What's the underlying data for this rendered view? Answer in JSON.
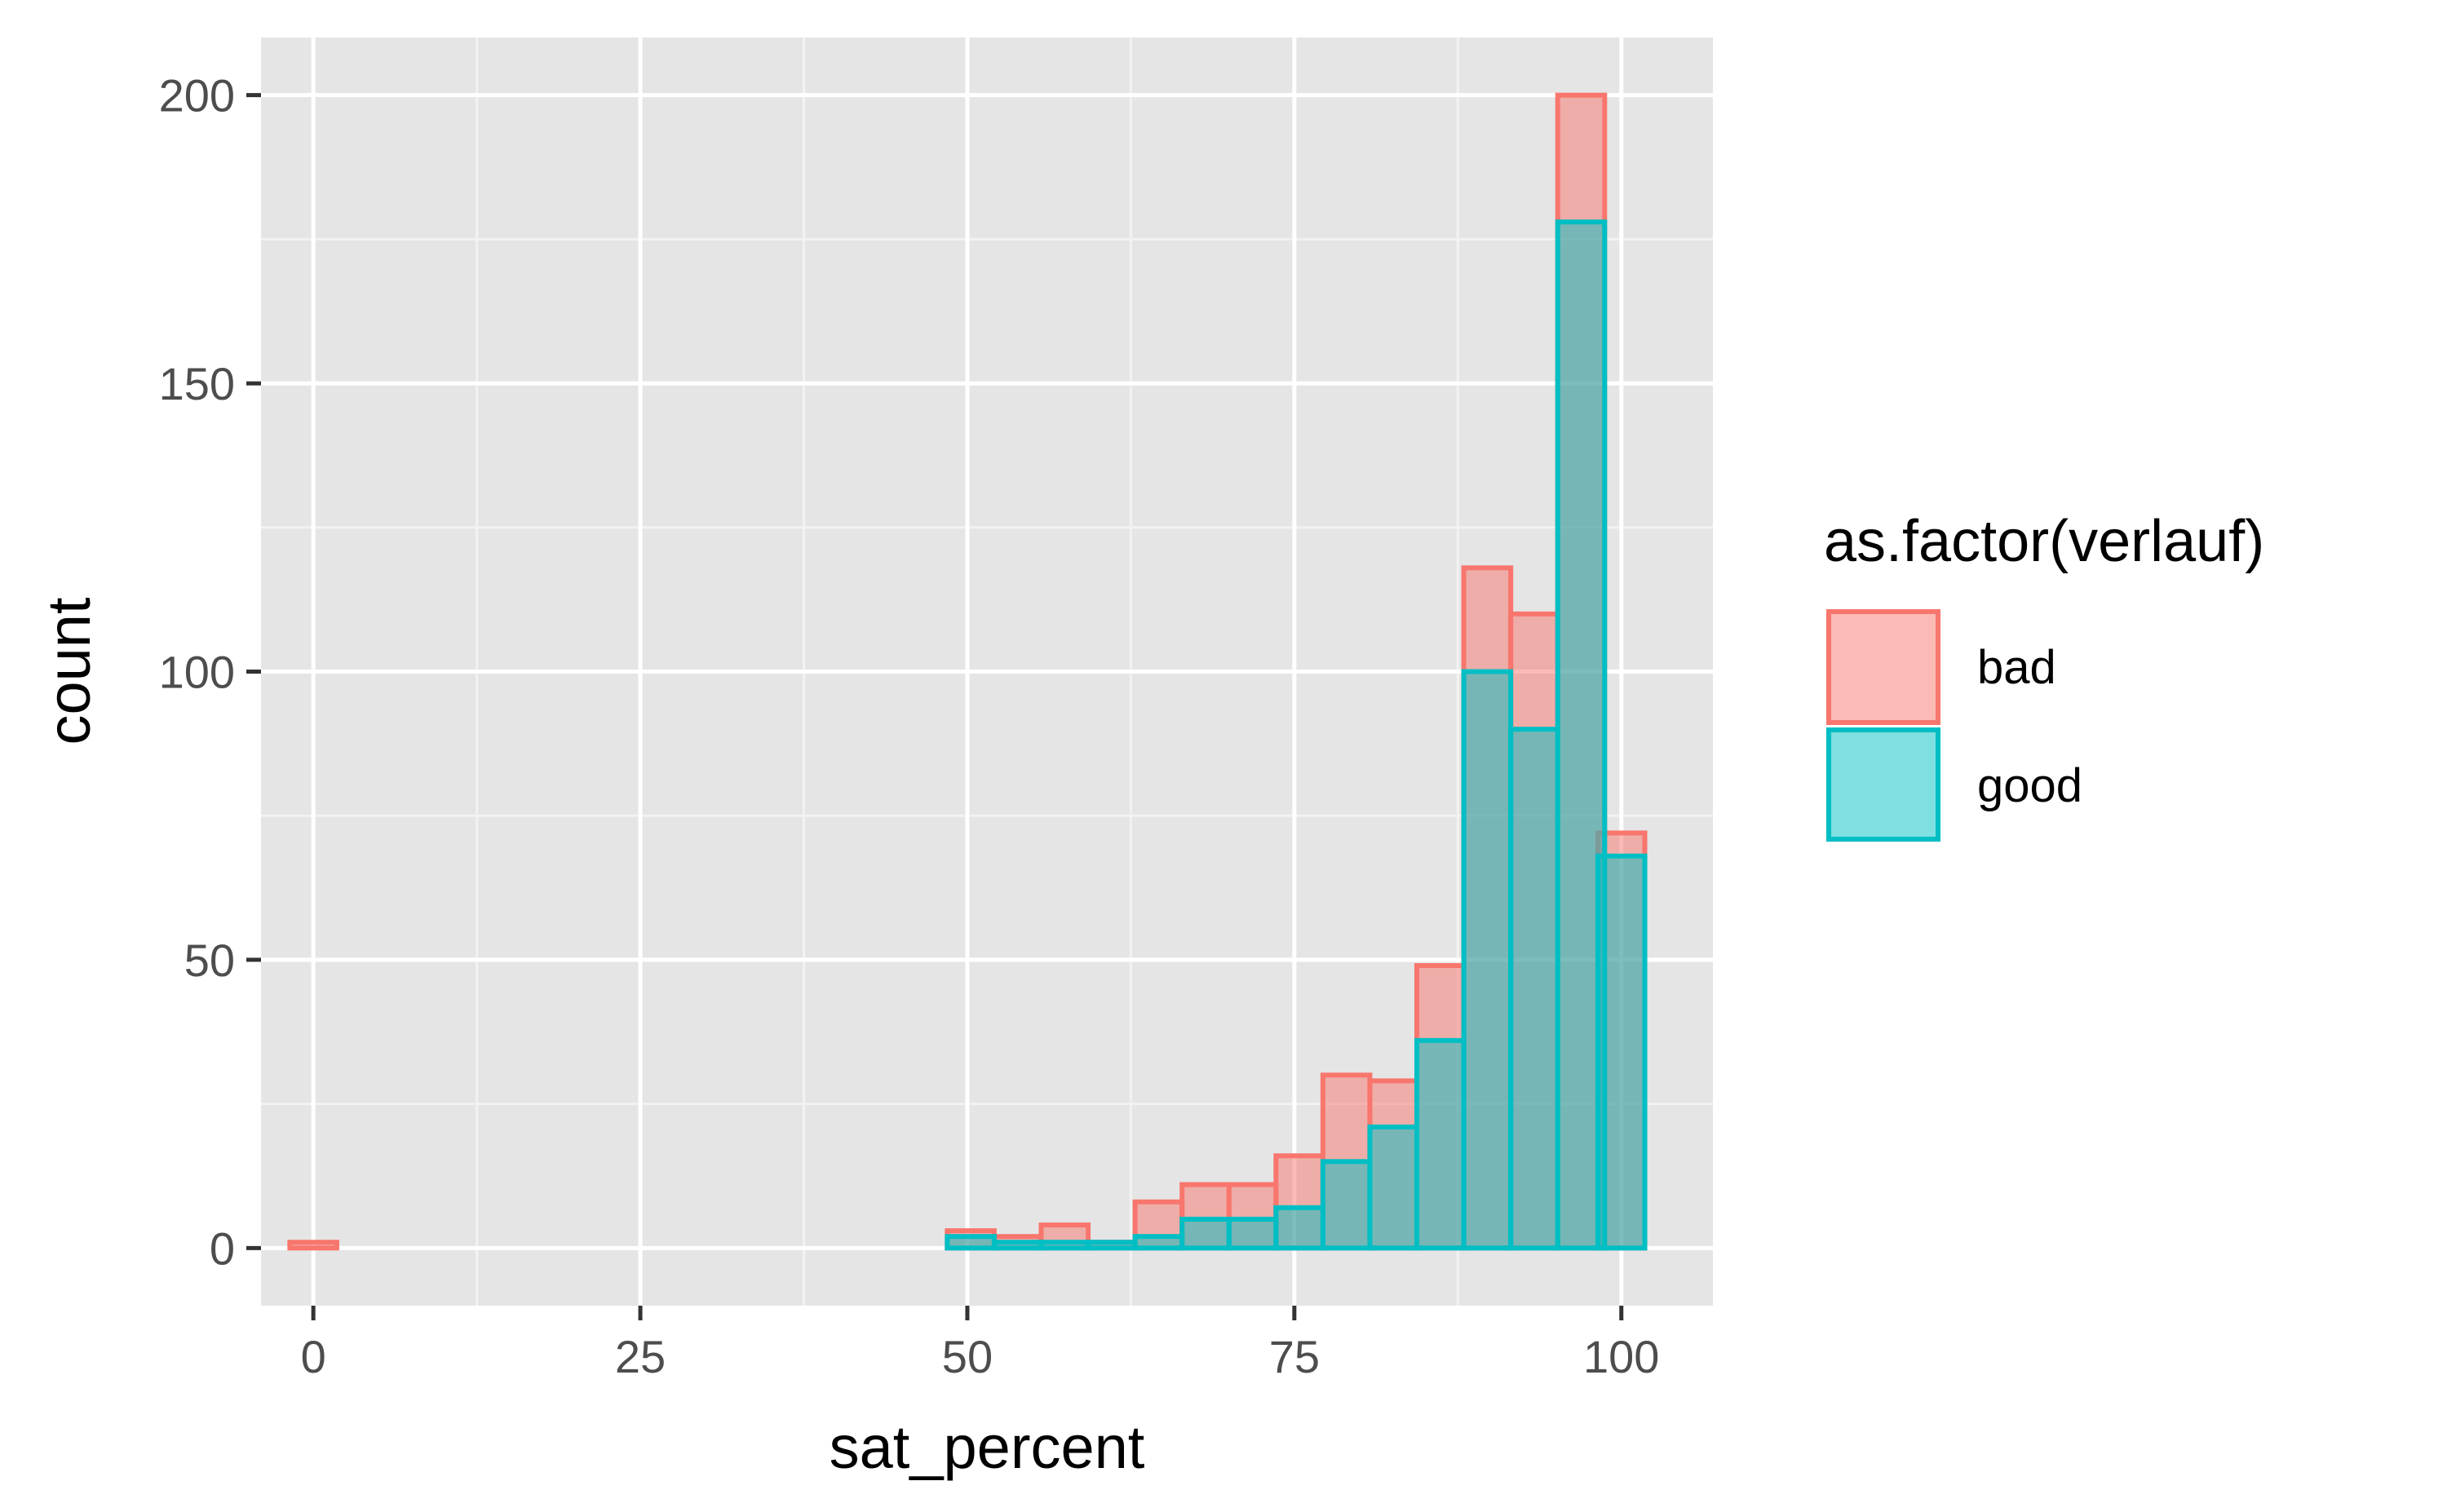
{
  "chart_data": {
    "type": "bar",
    "xlabel": "sat_percent",
    "ylabel": "count",
    "xlim": [
      -4,
      107
    ],
    "ylim": [
      -10,
      210
    ],
    "x_ticks": [
      0,
      25,
      50,
      75,
      100
    ],
    "x_tick_labels": [
      "0",
      "25",
      "50",
      "75",
      "100"
    ],
    "y_ticks": [
      0,
      50,
      100,
      150,
      200
    ],
    "y_tick_labels": [
      "0",
      "50",
      "100",
      "150",
      "200"
    ],
    "grid": true,
    "stacked": false,
    "bin_width": 3.59,
    "legend": {
      "title": "as.factor(verlauf)",
      "position": "right"
    },
    "x": [
      0.0,
      3.59,
      7.18,
      10.77,
      14.36,
      17.95,
      21.54,
      25.13,
      28.72,
      32.31,
      35.9,
      39.49,
      43.08,
      46.67,
      50.26,
      53.85,
      57.44,
      61.03,
      64.62,
      68.21,
      71.8,
      75.39,
      78.98,
      82.57,
      86.16,
      89.75,
      93.34,
      96.93,
      100.0
    ],
    "series": [
      {
        "name": "bad",
        "color": "#F8766D",
        "values": [
          1,
          0,
          0,
          0,
          0,
          0,
          0,
          0,
          0,
          0,
          0,
          0,
          0,
          0,
          3,
          2,
          4,
          1,
          8,
          11,
          11,
          16,
          30,
          29,
          49,
          118,
          110,
          200,
          72
        ]
      },
      {
        "name": "good",
        "color": "#00BFC4",
        "values": [
          0,
          0,
          0,
          0,
          0,
          0,
          0,
          0,
          0,
          0,
          0,
          0,
          0,
          0,
          2,
          1,
          1,
          1,
          2,
          5,
          5,
          7,
          15,
          21,
          36,
          100,
          90,
          178,
          68
        ]
      }
    ]
  }
}
